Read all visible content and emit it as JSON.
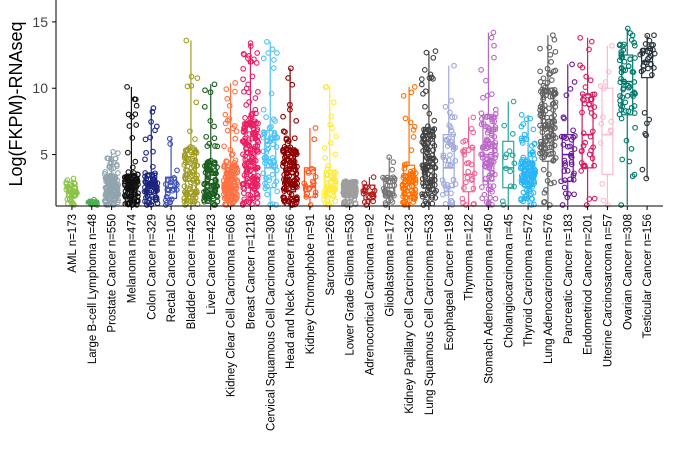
{
  "chart_data": {
    "type": "scatter",
    "subtype": "jitter strip plot with boxplots",
    "ylabel": "Log(FKPM)-RNAseq",
    "xlabel": "",
    "ylim": [
      1.2,
      16.5
    ],
    "yticks": [
      5,
      10,
      15
    ],
    "grid": false,
    "legend": "none",
    "categories": [
      {
        "label": "AML n=173",
        "color": "#8bc34a",
        "q1": 1.8,
        "median": 2.1,
        "q3": 2.6,
        "min": 1.2,
        "max": 3.2,
        "dense": 0.35
      },
      {
        "label": "Large B-cell Lymphoma n=48",
        "color": "#4caf50",
        "q1": 1.3,
        "median": 1.4,
        "q3": 1.5,
        "min": 1.2,
        "max": 1.6,
        "dense": 0.2
      },
      {
        "label": "Prostate Cancer n=550",
        "color": "#90a4ae",
        "q1": 1.8,
        "median": 2.4,
        "q3": 3.4,
        "min": 1.2,
        "max": 5.2,
        "dense": 0.6
      },
      {
        "label": "Melanoma n=474",
        "color": "#111111",
        "q1": 1.8,
        "median": 2.5,
        "q3": 3.5,
        "min": 1.2,
        "max": 10.1,
        "dense": 0.6
      },
      {
        "label": "Colon Cancer n=329",
        "color": "#1a237e",
        "q1": 1.8,
        "median": 2.6,
        "q3": 3.6,
        "min": 1.2,
        "max": 8.5,
        "dense": 0.55
      },
      {
        "label": "Rectal Cancer n=105",
        "color": "#3f51b5",
        "q1": 1.7,
        "median": 2.5,
        "q3": 3.3,
        "min": 1.2,
        "max": 6.2,
        "dense": 0.45
      },
      {
        "label": "Bladder Cancer n=426",
        "color": "#9e9d24",
        "q1": 2.0,
        "median": 3.0,
        "q3": 5.5,
        "min": 1.2,
        "max": 13.6,
        "dense": 0.6
      },
      {
        "label": "Liver Cancer n=423",
        "color": "#1b5e20",
        "q1": 1.9,
        "median": 2.8,
        "q3": 4.5,
        "min": 1.2,
        "max": 10.3,
        "dense": 0.6
      },
      {
        "label": "Kidney Clear Cell Carcinoma n=606",
        "color": "#ff7043",
        "q1": 1.9,
        "median": 2.8,
        "q3": 4.2,
        "min": 1.2,
        "max": 10.4,
        "dense": 0.65
      },
      {
        "label": "Breast Cancer n=1218",
        "color": "#e91e63",
        "q1": 2.8,
        "median": 4.5,
        "q3": 7.5,
        "min": 1.2,
        "max": 13.4,
        "dense": 0.85
      },
      {
        "label": "Cervical Squamous Cell Carcinoma n=308",
        "color": "#4fc3f7",
        "q1": 2.5,
        "median": 4.0,
        "q3": 6.8,
        "min": 1.2,
        "max": 13.5,
        "dense": 0.65
      },
      {
        "label": "Head and Neck Cancer n=566",
        "color": "#8b0000",
        "q1": 2.2,
        "median": 3.5,
        "q3": 5.5,
        "min": 1.2,
        "max": 11.5,
        "dense": 0.7
      },
      {
        "label": "Kidney Chromophobe n=91",
        "color": "#ff5722",
        "q1": 1.8,
        "median": 2.6,
        "q3": 4.0,
        "min": 1.2,
        "max": 7.0,
        "dense": 0.45
      },
      {
        "label": "Sarcoma n=265",
        "color": "#ffeb3b",
        "q1": 1.8,
        "median": 2.5,
        "q3": 3.8,
        "min": 1.2,
        "max": 10.1,
        "dense": 0.5
      },
      {
        "label": "Lower Grade Glioma n=530",
        "color": "#9e9e9e",
        "q1": 1.9,
        "median": 2.4,
        "q3": 2.8,
        "min": 1.2,
        "max": 3.0,
        "dense": 0.5
      },
      {
        "label": "Adrenocortical Carcinoma n=92",
        "color": "#b71c1c",
        "q1": 1.6,
        "median": 2.1,
        "q3": 2.7,
        "min": 1.2,
        "max": 3.3,
        "dense": 0.4
      },
      {
        "label": "Glioblastoma n=172",
        "color": "#757575",
        "q1": 1.9,
        "median": 2.5,
        "q3": 3.2,
        "min": 1.2,
        "max": 4.8,
        "dense": 0.45
      },
      {
        "label": "Kidney Papillary Cell Carcinoma n=323",
        "color": "#ff6f00",
        "q1": 1.9,
        "median": 2.8,
        "q3": 4.2,
        "min": 1.2,
        "max": 10.1,
        "dense": 0.55
      },
      {
        "label": "Lung Squamous Cell Carcinoma n=533",
        "color": "#424242",
        "q1": 2.5,
        "median": 4.2,
        "q3": 7.0,
        "min": 1.2,
        "max": 12.8,
        "dense": 0.7
      },
      {
        "label": "Esophageal Cancer n=198",
        "color": "#9fa8da",
        "q1": 2.5,
        "median": 4.0,
        "q3": 6.5,
        "min": 1.2,
        "max": 11.7,
        "dense": 0.6
      },
      {
        "label": "Thymoma n=122",
        "color": "#f06292",
        "q1": 2.2,
        "median": 3.5,
        "q3": 5.5,
        "min": 1.2,
        "max": 7.8,
        "dense": 0.5
      },
      {
        "label": "Stomach Adenocarcinoma n=450",
        "color": "#ba68c8",
        "q1": 3.0,
        "median": 5.0,
        "q3": 8.0,
        "min": 1.2,
        "max": 14.2,
        "dense": 0.75
      },
      {
        "label": "Cholangiocarcinoma n=45",
        "color": "#26a69a",
        "q1": 2.5,
        "median": 4.0,
        "q3": 6.0,
        "min": 1.2,
        "max": 9.0,
        "dense": 0.4
      },
      {
        "label": "Thyroid Carcinoma n=572",
        "color": "#29b6f6",
        "q1": 2.6,
        "median": 3.5,
        "q3": 4.5,
        "min": 1.2,
        "max": 8.0,
        "dense": 0.7
      },
      {
        "label": "Lung Adenocarcinoma n=576",
        "color": "#616161",
        "q1": 4.5,
        "median": 7.0,
        "q3": 10.0,
        "min": 1.2,
        "max": 14.0,
        "dense": 0.9
      },
      {
        "label": "Pancreatic Cancer n=183",
        "color": "#6a1b9a",
        "q1": 3.0,
        "median": 5.0,
        "q3": 6.5,
        "min": 1.2,
        "max": 11.8,
        "dense": 0.75
      },
      {
        "label": "Endometriod Cancer n=201",
        "color": "#d81b60",
        "q1": 4.0,
        "median": 6.5,
        "q3": 9.5,
        "min": 1.2,
        "max": 13.8,
        "dense": 0.8
      },
      {
        "label": "Uterine Carcinosarcoma n=57",
        "color": "#f8bbd0",
        "q1": 3.5,
        "median": 6.5,
        "q3": 10.0,
        "min": 1.2,
        "max": 13.2,
        "dense": 0.6
      },
      {
        "label": "Ovarian Cancer n=308",
        "color": "#00796b",
        "q1": 8.0,
        "median": 10.5,
        "q3": 12.5,
        "min": 1.2,
        "max": 14.5,
        "dense": 0.9
      },
      {
        "label": "Testicular Cancer n=156",
        "color": "#263238",
        "q1": 10.8,
        "median": 12.0,
        "q3": 13.0,
        "min": 3.2,
        "max": 14.0,
        "dense": 0.85
      }
    ]
  }
}
